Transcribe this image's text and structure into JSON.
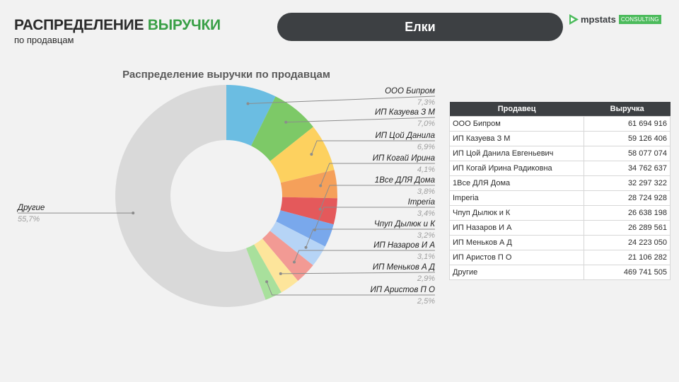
{
  "header": {
    "title_part1": "РАСПРЕДЕЛЕНИЕ",
    "title_part2": "ВЫРУЧКИ",
    "subtitle": "по продавцам"
  },
  "category": {
    "label": "Елки"
  },
  "logo": {
    "name": "mpstats",
    "badge": "CONSULTING"
  },
  "colors": {
    "accent_green": "#3aa047",
    "pill_bg": "#3d4043",
    "others_slice": "#d9d9d9"
  },
  "chart_data": {
    "type": "pie",
    "title": "Распределение выручки по продавцам",
    "donut": true,
    "start": "top, clockwise",
    "slices": [
      {
        "label": "ООО Бипром",
        "percent": 7.3,
        "display": "7,3%",
        "color": "#6bbde2"
      },
      {
        "label": "ИП Казуева З М",
        "percent": 7.0,
        "display": "7,0%",
        "color": "#7dc967"
      },
      {
        "label": "ИП Цой Данила",
        "percent": 6.9,
        "display": "6,9%",
        "color": "#fdd15f"
      },
      {
        "label": "ИП Когай Ирина",
        "percent": 4.1,
        "display": "4,1%",
        "color": "#f5a05a"
      },
      {
        "label": "1Все ДЛЯ Дома",
        "percent": 3.8,
        "display": "3,8%",
        "color": "#e4595b"
      },
      {
        "label": "Imperia",
        "percent": 3.4,
        "display": "3,4%",
        "color": "#79a8ec"
      },
      {
        "label": "Чпуп Дылюк и К",
        "percent": 3.2,
        "display": "3,2%",
        "color": "#b6d4f6"
      },
      {
        "label": "ИП Назаров И А",
        "percent": 3.1,
        "display": "3,1%",
        "color": "#f29a94"
      },
      {
        "label": "ИП Меньков А Д",
        "percent": 2.9,
        "display": "2,9%",
        "color": "#fde59b"
      },
      {
        "label": "ИП Аристов П О",
        "percent": 2.5,
        "display": "2,5%",
        "color": "#a8e09c"
      },
      {
        "label": "Другие",
        "percent": 55.7,
        "display": "55,7%",
        "color": "#d9d9d9"
      }
    ]
  },
  "table": {
    "headers": {
      "seller": "Продавец",
      "revenue": "Выручка"
    },
    "rows": [
      {
        "seller": "ООО Бипром",
        "revenue": "61 694 916"
      },
      {
        "seller": "ИП Казуева З М",
        "revenue": "59 126 406"
      },
      {
        "seller": "ИП Цой Данила Евгеньевич",
        "revenue": "58 077 074"
      },
      {
        "seller": "ИП Когай Ирина Радиковна",
        "revenue": "34 762 637"
      },
      {
        "seller": "1Все ДЛЯ Дома",
        "revenue": "32 297 322"
      },
      {
        "seller": "Imperia",
        "revenue": "28 724 928"
      },
      {
        "seller": "Чпуп Дылюк и К",
        "revenue": "26 638 198"
      },
      {
        "seller": "ИП Назаров И А",
        "revenue": "26 289 561"
      },
      {
        "seller": "ИП Меньков А Д",
        "revenue": "24 223 050"
      },
      {
        "seller": "ИП Аристов П О",
        "revenue": "21 106 282"
      },
      {
        "seller": "Другие",
        "revenue": "469 741 505"
      }
    ]
  }
}
